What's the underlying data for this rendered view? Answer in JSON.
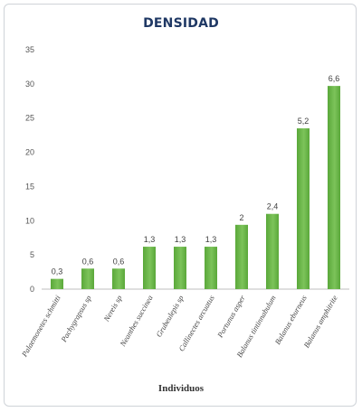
{
  "chart_data": {
    "type": "bar",
    "title": "DENSIDAD",
    "xlabel": "Individuos",
    "ylabel": "",
    "ylim": [
      0,
      35
    ],
    "yticks": [
      0,
      5,
      10,
      15,
      20,
      25,
      30,
      35
    ],
    "grid": false,
    "legend": "none",
    "bar_color": "#5aa83a",
    "bar_color_light": "#7cc35a",
    "categories": [
      "Palaemonetes schmitti",
      "Pachygrapsus sp",
      "Nereis sp",
      "Neanthes succinea",
      "Grubeulepis sp",
      "Callinectes arcuatus",
      "Portunus asper",
      "Balanus tintinnabulum",
      "Balanus eburneus",
      "Balanus amphitrite"
    ],
    "values": [
      1.5,
      3,
      3,
      6.2,
      6.2,
      6.2,
      9.4,
      11,
      23.5,
      29.7
    ],
    "data_labels": [
      "0,3",
      "0,6",
      "0,6",
      "1,3",
      "1,3",
      "1,3",
      "2",
      "2,4",
      "5,2",
      "6,6"
    ]
  }
}
